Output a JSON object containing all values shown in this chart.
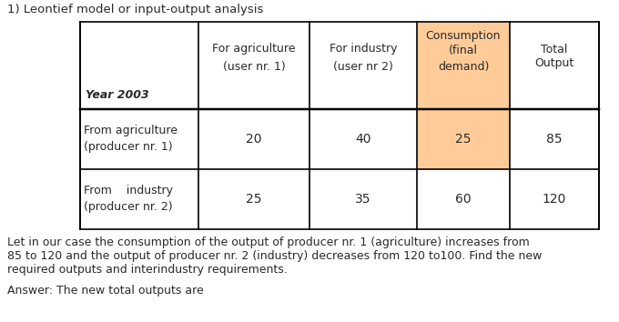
{
  "title": "1) Leontief model or input-output analysis",
  "title_fontsize": 9.5,
  "body_fontsize": 9,
  "highlight_color": "#FFCC99",
  "row1_data": [
    "20",
    "40",
    "25",
    "85"
  ],
  "row2_data": [
    "25",
    "35",
    "60",
    "120"
  ],
  "paragraph_lines": [
    "Let in our case the consumption of the output of producer nr. 1 (agriculture) increases from",
    "85 to 120 and the output of producer nr. 2 (industry) decreases from 120 to100. Find the new",
    "required outputs and interindustry requirements."
  ],
  "answer": "Answer: The new total outputs are",
  "text_color": "#2a2a2a",
  "brown_color": "#8B4513"
}
